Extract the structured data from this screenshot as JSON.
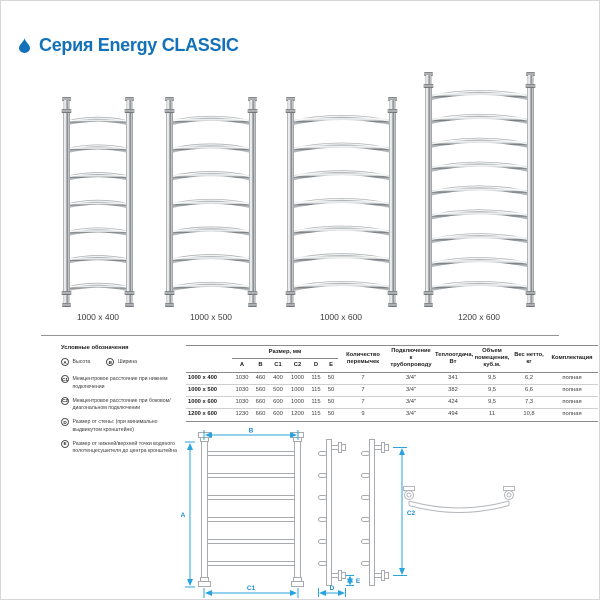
{
  "header": {
    "title": "Серия Energy CLASSIC",
    "accent_color": "#1271b8",
    "drop_icon": "water-drop-icon"
  },
  "products": [
    {
      "label": "1000 x 400",
      "bars": 7
    },
    {
      "label": "1000 x 500",
      "bars": 7
    },
    {
      "label": "1000 x 600",
      "bars": 7
    },
    {
      "label": "1200 x 600",
      "bars": 9
    }
  ],
  "legend": {
    "title": "Условные обозначения",
    "items": [
      {
        "key": "A",
        "text": "Высота"
      },
      {
        "key": "B",
        "text": "Ширина"
      },
      {
        "key": "C1",
        "text": "Межцентровое расстояние при нижнем подключении"
      },
      {
        "key": "C2",
        "text": "Межцентровое расстояние при боковом/диагональном подключении"
      },
      {
        "key": "D",
        "text": "Размер от стены: (при минимально выдвинутом кронштейне)"
      },
      {
        "key": "E",
        "text": "Размер от нижней/верхней точки водяного полотенцесушителя до центра кронштейна"
      }
    ]
  },
  "table": {
    "group_header": "Размер, мм",
    "size_columns": [
      "A",
      "B",
      "C1",
      "C2",
      "D",
      "E"
    ],
    "other_columns": [
      "Количество перемычек",
      "Подключение к трубопроводу",
      "Теплоотдача, Вт",
      "Объем помещения, куб.м.",
      "Вес нетто, кг",
      "Комплектация"
    ],
    "rows": [
      {
        "model": "1000 x 400",
        "sizes": [
          "1030",
          "460",
          "400",
          "1000",
          "115",
          "50"
        ],
        "values": [
          "7",
          "3/4\"",
          "341",
          "9,5",
          "6,2",
          "полная"
        ]
      },
      {
        "model": "1000 x 500",
        "sizes": [
          "1030",
          "560",
          "500",
          "1000",
          "115",
          "50"
        ],
        "values": [
          "7",
          "3/4\"",
          "382",
          "9,5",
          "6,6",
          "полная"
        ]
      },
      {
        "model": "1000 x 600",
        "sizes": [
          "1030",
          "660",
          "600",
          "1000",
          "115",
          "50"
        ],
        "values": [
          "7",
          "3/4\"",
          "424",
          "9,5",
          "7,3",
          "полная"
        ]
      },
      {
        "model": "1200 x 600",
        "sizes": [
          "1230",
          "660",
          "600",
          "1200",
          "115",
          "50"
        ],
        "values": [
          "9",
          "3/4\"",
          "494",
          "11",
          "10,8",
          "полная"
        ]
      }
    ]
  },
  "drawings": {
    "labels": {
      "front_top": "B",
      "front_left": "A",
      "front_bottom": "C1",
      "side_wall": "D",
      "side_bracket": "E",
      "side_span": "C2"
    },
    "dimension_color": "#29a3de",
    "line_color": "#a9adb2"
  }
}
